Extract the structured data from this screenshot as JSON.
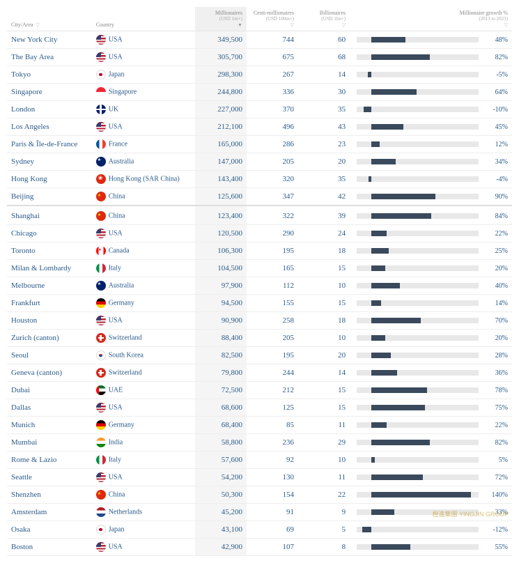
{
  "table": {
    "headers": {
      "city": "City/Area",
      "country": "Country",
      "millionaires": "Millionaires",
      "millionaires_sub": "(USD 1m+)",
      "centi": "Centi-millionaires",
      "centi_sub": "(USD 100m+)",
      "billionaires": "Billionaires",
      "billionaires_sub": "(USD 1bn+)",
      "growth": "Millionaire growth %",
      "growth_sub": "(2013 to 2023)"
    },
    "styling": {
      "link_color": "#2a5a8a",
      "bar_fill_color": "#3a4a5c",
      "bar_track_color": "#e8e8e8",
      "sorted_bg": "#f5f5f5",
      "border_color": "#eeeeee",
      "font_family": "Georgia, serif",
      "font_size_body": 11,
      "font_size_header": 8
    },
    "growth_scale_min": -20,
    "growth_scale_max": 150,
    "section_break_after_index": 9,
    "rows": [
      {
        "city": "New York City",
        "country": "USA",
        "flag": "usa",
        "millionaires": "349,500",
        "centi": "744",
        "billionaires": "60",
        "growth": 48
      },
      {
        "city": "The Bay Area",
        "country": "USA",
        "flag": "usa",
        "millionaires": "305,700",
        "centi": "675",
        "billionaires": "68",
        "growth": 82
      },
      {
        "city": "Tokyo",
        "country": "Japan",
        "flag": "japan",
        "millionaires": "298,300",
        "centi": "267",
        "billionaires": "14",
        "growth": -5
      },
      {
        "city": "Singapore",
        "country": "Singapore",
        "flag": "singapore",
        "millionaires": "244,800",
        "centi": "336",
        "billionaires": "30",
        "growth": 64
      },
      {
        "city": "London",
        "country": "UK",
        "flag": "uk",
        "millionaires": "227,000",
        "centi": "370",
        "billionaires": "35",
        "growth": -10
      },
      {
        "city": "Los Angeles",
        "country": "USA",
        "flag": "usa",
        "millionaires": "212,100",
        "centi": "496",
        "billionaires": "43",
        "growth": 45
      },
      {
        "city": "Paris & Île-de-France",
        "country": "France",
        "flag": "france",
        "millionaires": "165,000",
        "centi": "286",
        "billionaires": "23",
        "growth": 12
      },
      {
        "city": "Sydney",
        "country": "Australia",
        "flag": "australia",
        "millionaires": "147,000",
        "centi": "205",
        "billionaires": "20",
        "growth": 34
      },
      {
        "city": "Hong Kong",
        "country": "Hong Kong (SAR China)",
        "flag": "hongkong",
        "millionaires": "143,400",
        "centi": "320",
        "billionaires": "35",
        "growth": -4
      },
      {
        "city": "Beijing",
        "country": "China",
        "flag": "china",
        "millionaires": "125,600",
        "centi": "347",
        "billionaires": "42",
        "growth": 90
      },
      {
        "city": "Shanghai",
        "country": "China",
        "flag": "china",
        "millionaires": "123,400",
        "centi": "322",
        "billionaires": "39",
        "growth": 84
      },
      {
        "city": "Chicago",
        "country": "USA",
        "flag": "usa",
        "millionaires": "120,500",
        "centi": "290",
        "billionaires": "24",
        "growth": 22
      },
      {
        "city": "Toronto",
        "country": "Canada",
        "flag": "canada",
        "millionaires": "106,300",
        "centi": "195",
        "billionaires": "18",
        "growth": 25
      },
      {
        "city": "Milan & Lombardy",
        "country": "Italy",
        "flag": "italy",
        "millionaires": "104,500",
        "centi": "165",
        "billionaires": "15",
        "growth": 20
      },
      {
        "city": "Melbourne",
        "country": "Australia",
        "flag": "australia",
        "millionaires": "97,900",
        "centi": "112",
        "billionaires": "10",
        "growth": 40
      },
      {
        "city": "Frankfurt",
        "country": "Germany",
        "flag": "germany",
        "millionaires": "94,500",
        "centi": "155",
        "billionaires": "15",
        "growth": 14
      },
      {
        "city": "Houston",
        "country": "USA",
        "flag": "usa",
        "millionaires": "90,900",
        "centi": "258",
        "billionaires": "18",
        "growth": 70
      },
      {
        "city": "Zurich (canton)",
        "country": "Switzerland",
        "flag": "switzerland",
        "millionaires": "88,400",
        "centi": "205",
        "billionaires": "10",
        "growth": 20
      },
      {
        "city": "Seoul",
        "country": "South Korea",
        "flag": "southkorea",
        "millionaires": "82,500",
        "centi": "195",
        "billionaires": "20",
        "growth": 28
      },
      {
        "city": "Geneva (canton)",
        "country": "Switzerland",
        "flag": "switzerland",
        "millionaires": "79,800",
        "centi": "244",
        "billionaires": "14",
        "growth": 36
      },
      {
        "city": "Dubai",
        "country": "UAE",
        "flag": "uae",
        "millionaires": "72,500",
        "centi": "212",
        "billionaires": "15",
        "growth": 78
      },
      {
        "city": "Dallas",
        "country": "USA",
        "flag": "usa",
        "millionaires": "68,600",
        "centi": "125",
        "billionaires": "15",
        "growth": 75
      },
      {
        "city": "Munich",
        "country": "Germany",
        "flag": "germany",
        "millionaires": "68,400",
        "centi": "85",
        "billionaires": "11",
        "growth": 22
      },
      {
        "city": "Mumbai",
        "country": "India",
        "flag": "india",
        "millionaires": "58,800",
        "centi": "236",
        "billionaires": "29",
        "growth": 82
      },
      {
        "city": "Rome & Lazio",
        "country": "Italy",
        "flag": "italy",
        "millionaires": "57,600",
        "centi": "92",
        "billionaires": "10",
        "growth": 5
      },
      {
        "city": "Seattle",
        "country": "USA",
        "flag": "usa",
        "millionaires": "54,200",
        "centi": "130",
        "billionaires": "11",
        "growth": 72
      },
      {
        "city": "Shenzhen",
        "country": "China",
        "flag": "china",
        "millionaires": "50,300",
        "centi": "154",
        "billionaires": "22",
        "growth": 140
      },
      {
        "city": "Amsterdam",
        "country": "Netherlands",
        "flag": "netherlands",
        "millionaires": "45,200",
        "centi": "91",
        "billionaires": "9",
        "growth": 33
      },
      {
        "city": "Osaka",
        "country": "Japan",
        "flag": "japan",
        "millionaires": "43,100",
        "centi": "69",
        "billionaires": "5",
        "growth": -12
      },
      {
        "city": "Boston",
        "country": "USA",
        "flag": "usa",
        "millionaires": "42,900",
        "centi": "107",
        "billionaires": "8",
        "growth": 55
      }
    ]
  },
  "watermark": "橙進集團 YINGJIN GROUP"
}
